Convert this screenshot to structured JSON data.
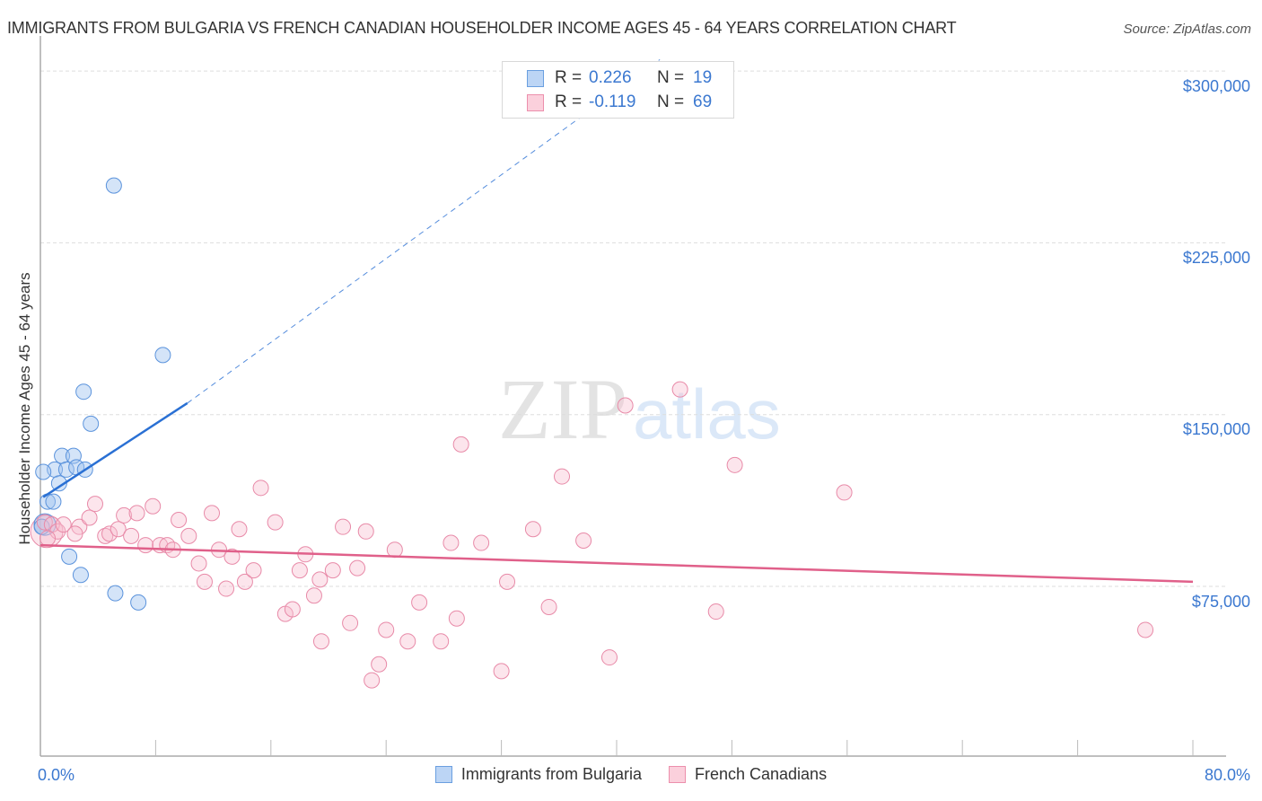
{
  "header": {
    "title": "IMMIGRANTS FROM BULGARIA VS FRENCH CANADIAN HOUSEHOLDER INCOME AGES 45 - 64 YEARS CORRELATION CHART",
    "source": "Source: ZipAtlas.com"
  },
  "watermark": {
    "zip": "ZIP",
    "atlas": "atlas"
  },
  "legend": {
    "rows": [
      {
        "r_label": "R =",
        "r_value": "0.226",
        "n_label": "N =",
        "n_value": "19",
        "color": "#a9c8f0",
        "border": "#6a9fe0"
      },
      {
        "r_label": "R =",
        "r_value": "-0.119",
        "n_label": "N =",
        "n_value": "69",
        "color": "#f9c3d2",
        "border": "#ec8fac"
      }
    ]
  },
  "bottom_legend": {
    "items": [
      {
        "label": "Immigrants from Bulgaria",
        "color": "#bcd5f5",
        "border": "#6a9fe0"
      },
      {
        "label": "French Canadians",
        "color": "#fbd0dc",
        "border": "#ec8fac"
      }
    ]
  },
  "colors": {
    "blue_fill": "rgba(160,196,240,0.45)",
    "blue_stroke": "#5b93dc",
    "blue_line": "#2a70d4",
    "pink_fill": "rgba(248,190,208,0.40)",
    "pink_stroke": "#e88aa8",
    "pink_line": "#e0608a",
    "tick_label": "#3b78d0",
    "grid": "#dddddd"
  },
  "axes": {
    "ylabel": "Householder Income Ages 45 - 64 years",
    "yticks": [
      "$300,000",
      "$225,000",
      "$150,000",
      "$75,000"
    ],
    "xticks": [
      "0.0%",
      "80.0%"
    ]
  },
  "chart_data": {
    "type": "scatter",
    "title": "Immigrants from Bulgaria vs French Canadian Householder Income Ages 45 - 64 years Correlation Chart",
    "xlabel": "",
    "ylabel": "Householder Income Ages 45 - 64 years",
    "xlim": [
      0,
      80
    ],
    "ylim": [
      5000,
      310000
    ],
    "x_unit": "%",
    "yticks": [
      75000,
      150000,
      225000,
      300000
    ],
    "xticks_labeled": [
      0,
      80
    ],
    "grid": true,
    "legend_position": "top-center",
    "series": [
      {
        "name": "Immigrants from Bulgaria",
        "R": 0.226,
        "N": 19,
        "points": [
          [
            5.1,
            250000
          ],
          [
            8.5,
            176000
          ],
          [
            3.0,
            160000
          ],
          [
            3.5,
            146000
          ],
          [
            1.5,
            132000
          ],
          [
            2.3,
            132000
          ],
          [
            1.0,
            126000
          ],
          [
            1.8,
            126000
          ],
          [
            2.5,
            127000
          ],
          [
            3.1,
            126000
          ],
          [
            0.2,
            125000
          ],
          [
            1.3,
            120000
          ],
          [
            0.5,
            112000
          ],
          [
            0.9,
            112000
          ],
          [
            0.1,
            101000
          ],
          [
            2.0,
            88000
          ],
          [
            2.8,
            80000
          ],
          [
            5.2,
            72000
          ],
          [
            6.8,
            68000
          ]
        ],
        "trend": {
          "x0": 0.2,
          "y0": 114000,
          "x1": 10.2,
          "y1": 155000,
          "dashed_extension_to": [
            43,
            305000
          ]
        }
      },
      {
        "name": "French Canadians",
        "R": -0.119,
        "N": 69,
        "points": [
          [
            0.3,
            103000
          ],
          [
            0.8,
            102000
          ],
          [
            1.2,
            99000
          ],
          [
            2.7,
            101000
          ],
          [
            3.4,
            105000
          ],
          [
            3.8,
            111000
          ],
          [
            4.5,
            97000
          ],
          [
            4.8,
            98000
          ],
          [
            5.4,
            100000
          ],
          [
            5.8,
            106000
          ],
          [
            6.3,
            97000
          ],
          [
            6.7,
            107000
          ],
          [
            7.3,
            93000
          ],
          [
            7.8,
            110000
          ],
          [
            8.3,
            93000
          ],
          [
            8.8,
            93000
          ],
          [
            9.2,
            91000
          ],
          [
            9.6,
            104000
          ],
          [
            10.3,
            97000
          ],
          [
            11.0,
            85000
          ],
          [
            11.4,
            77000
          ],
          [
            11.9,
            107000
          ],
          [
            12.4,
            91000
          ],
          [
            12.9,
            74000
          ],
          [
            13.3,
            88000
          ],
          [
            13.8,
            100000
          ],
          [
            14.2,
            77000
          ],
          [
            14.8,
            82000
          ],
          [
            15.3,
            118000
          ],
          [
            16.3,
            103000
          ],
          [
            17.0,
            63000
          ],
          [
            17.5,
            65000
          ],
          [
            18.0,
            82000
          ],
          [
            18.4,
            89000
          ],
          [
            19.0,
            71000
          ],
          [
            19.4,
            78000
          ],
          [
            19.5,
            51000
          ],
          [
            20.3,
            82000
          ],
          [
            21.0,
            101000
          ],
          [
            21.5,
            59000
          ],
          [
            22.0,
            83000
          ],
          [
            22.6,
            99000
          ],
          [
            23.0,
            34000
          ],
          [
            23.5,
            41000
          ],
          [
            24.0,
            56000
          ],
          [
            24.6,
            91000
          ],
          [
            25.5,
            51000
          ],
          [
            26.3,
            68000
          ],
          [
            27.8,
            51000
          ],
          [
            28.5,
            94000
          ],
          [
            28.9,
            61000
          ],
          [
            29.2,
            137000
          ],
          [
            30.6,
            94000
          ],
          [
            32.0,
            38000
          ],
          [
            32.4,
            77000
          ],
          [
            34.2,
            100000
          ],
          [
            35.3,
            66000
          ],
          [
            36.2,
            123000
          ],
          [
            37.7,
            95000
          ],
          [
            39.5,
            44000
          ],
          [
            40.6,
            154000
          ],
          [
            44.4,
            161000
          ],
          [
            46.9,
            64000
          ],
          [
            48.2,
            128000
          ],
          [
            55.8,
            116000
          ],
          [
            76.7,
            56000
          ],
          [
            0.5,
            96000
          ],
          [
            1.6,
            102000
          ],
          [
            2.4,
            98000
          ]
        ],
        "trend": {
          "x0": 0,
          "y0": 93000,
          "x1": 80,
          "y1": 77000
        }
      }
    ]
  }
}
